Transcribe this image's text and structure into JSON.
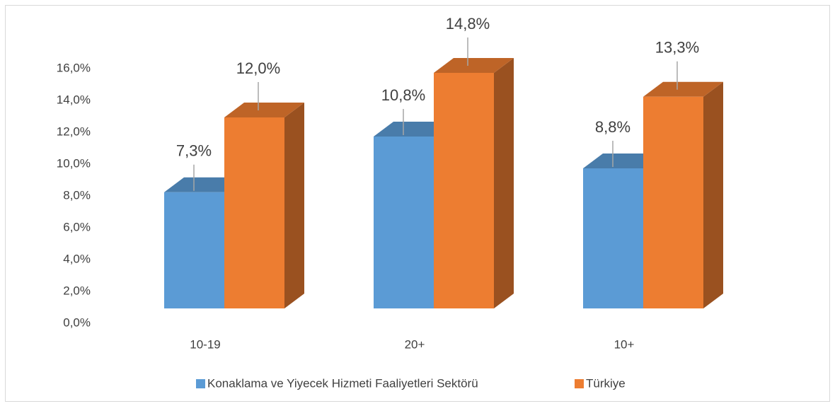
{
  "chart_data": {
    "type": "bar3d",
    "categories": [
      "10-19",
      "20+",
      "10+"
    ],
    "series": [
      {
        "name": "Konaklama ve Yiyecek Hizmeti Faaliyetleri Sektörü",
        "color": "#5b9bd5",
        "values": [
          7.3,
          10.8,
          8.8
        ],
        "value_labels": [
          "7,3%",
          "10,8%",
          "8,8%"
        ]
      },
      {
        "name": "Türkiye",
        "color": "#ed7d31",
        "values": [
          12.0,
          14.8,
          13.3
        ],
        "value_labels": [
          "12,0%",
          "14,8%",
          "13,3%"
        ]
      }
    ],
    "ylim": [
      0,
      16
    ],
    "yticks": [
      {
        "value": 0,
        "label": "0,0%"
      },
      {
        "value": 2,
        "label": "2,0%"
      },
      {
        "value": 4,
        "label": "4,0%"
      },
      {
        "value": 6,
        "label": "6,0%"
      },
      {
        "value": 8,
        "label": "8,0%"
      },
      {
        "value": 10,
        "label": "10,0%"
      },
      {
        "value": 12,
        "label": "12,0%"
      },
      {
        "value": 14,
        "label": "14,0%"
      },
      {
        "value": 16,
        "label": "16,0%"
      }
    ],
    "grid": false,
    "legend": "bottom"
  }
}
